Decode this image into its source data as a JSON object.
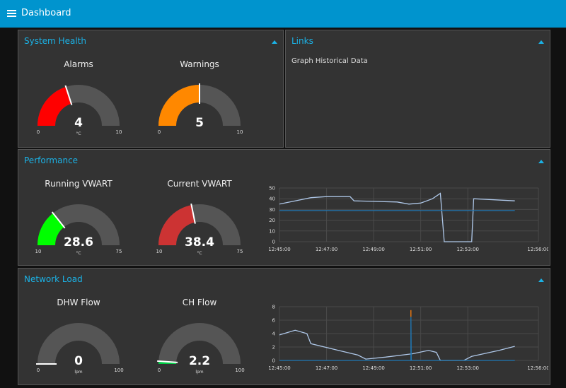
{
  "header": {
    "title": "Dashboard"
  },
  "panels": {
    "system_health": {
      "title": "System Health",
      "gauges": [
        {
          "label": "Alarms",
          "value": 4,
          "display": "4",
          "min": 0,
          "max": 10,
          "units": "°C",
          "color": "#ff0000"
        },
        {
          "label": "Warnings",
          "value": 5,
          "display": "5",
          "min": 0,
          "max": 10,
          "units": "",
          "color": "#ff8800"
        }
      ]
    },
    "links": {
      "title": "Links",
      "items": [
        {
          "label": "Graph Historical Data"
        }
      ]
    },
    "performance": {
      "title": "Performance",
      "gauges": [
        {
          "label": "Running VWART",
          "value": 28.6,
          "display": "28.6",
          "min": 10,
          "max": 75,
          "units": "°C",
          "color": "#00ff00"
        },
        {
          "label": "Current VWART",
          "value": 38.4,
          "display": "38.4",
          "min": 10,
          "max": 75,
          "units": "°C",
          "color": "#cc3333"
        }
      ]
    },
    "network_load": {
      "title": "Network Load",
      "gauges": [
        {
          "label": "DHW Flow",
          "value": 0,
          "display": "0",
          "min": 0,
          "max": 100,
          "units": "lpm",
          "color": "#00ff00"
        },
        {
          "label": "CH Flow",
          "value": 2.2,
          "display": "2.2",
          "min": 0,
          "max": 100,
          "units": "lpm",
          "color": "#00cc44"
        }
      ]
    }
  },
  "chart_data": [
    {
      "type": "line",
      "ylim": [
        0,
        50
      ],
      "yticks": [
        "0",
        "10",
        "20",
        "30",
        "40",
        "50"
      ],
      "xlim": [
        "12:45:00",
        "12:56:00"
      ],
      "xticks": [
        "12:45:00",
        "12:47:00",
        "12:49:00",
        "12:51:00",
        "12:53:00",
        "12:56:00"
      ],
      "series": [
        {
          "color": "#aec7e8",
          "points": [
            [
              "12:45:00",
              35
            ],
            [
              "12:45:40",
              38
            ],
            [
              "12:46:20",
              41
            ],
            [
              "12:47:00",
              42
            ],
            [
              "12:48:00",
              42
            ],
            [
              "12:48:10",
              38
            ],
            [
              "12:50:00",
              37
            ],
            [
              "12:50:30",
              35
            ],
            [
              "12:51:00",
              36
            ],
            [
              "12:51:30",
              40
            ],
            [
              "12:51:50",
              45
            ],
            [
              "12:52:00",
              0
            ],
            [
              "12:53:10",
              0
            ],
            [
              "12:53:15",
              40
            ],
            [
              "12:55:00",
              38
            ]
          ]
        },
        {
          "color": "#1f77b4",
          "points": [
            [
              "12:45:00",
              29
            ],
            [
              "12:55:00",
              29
            ]
          ]
        }
      ]
    },
    {
      "type": "line",
      "ylim": [
        0,
        8
      ],
      "yticks": [
        "0",
        "2",
        "4",
        "6",
        "8"
      ],
      "xlim": [
        "12:45:00",
        "12:56:00"
      ],
      "xticks": [
        "12:45:00",
        "12:47:00",
        "12:49:00",
        "12:51:00",
        "12:53:00",
        "12:56:00"
      ],
      "series": [
        {
          "color": "#aec7e8",
          "points": [
            [
              "12:45:00",
              3.8
            ],
            [
              "12:45:40",
              4.5
            ],
            [
              "12:46:10",
              4.0
            ],
            [
              "12:46:20",
              2.5
            ],
            [
              "12:47:30",
              1.5
            ],
            [
              "12:48:20",
              0.8
            ],
            [
              "12:48:40",
              0.2
            ],
            [
              "12:49:30",
              0.5
            ],
            [
              "12:50:40",
              1.0
            ],
            [
              "12:51:20",
              1.5
            ],
            [
              "12:51:40",
              1.2
            ],
            [
              "12:51:50",
              0
            ],
            [
              "12:52:50",
              0
            ],
            [
              "12:53:10",
              0.6
            ],
            [
              "12:54:20",
              1.5
            ],
            [
              "12:55:00",
              2.1
            ]
          ]
        },
        {
          "color": "#1f77b4",
          "points": [
            [
              "12:45:00",
              0
            ],
            [
              "12:50:35",
              0
            ],
            [
              "12:50:35",
              6.5
            ],
            [
              "12:50:36",
              0
            ],
            [
              "12:55:00",
              0
            ]
          ]
        },
        {
          "color": "#ff7f0e",
          "points": [
            [
              "12:50:35",
              6.5
            ],
            [
              "12:50:35",
              7.5
            ]
          ]
        }
      ]
    }
  ]
}
